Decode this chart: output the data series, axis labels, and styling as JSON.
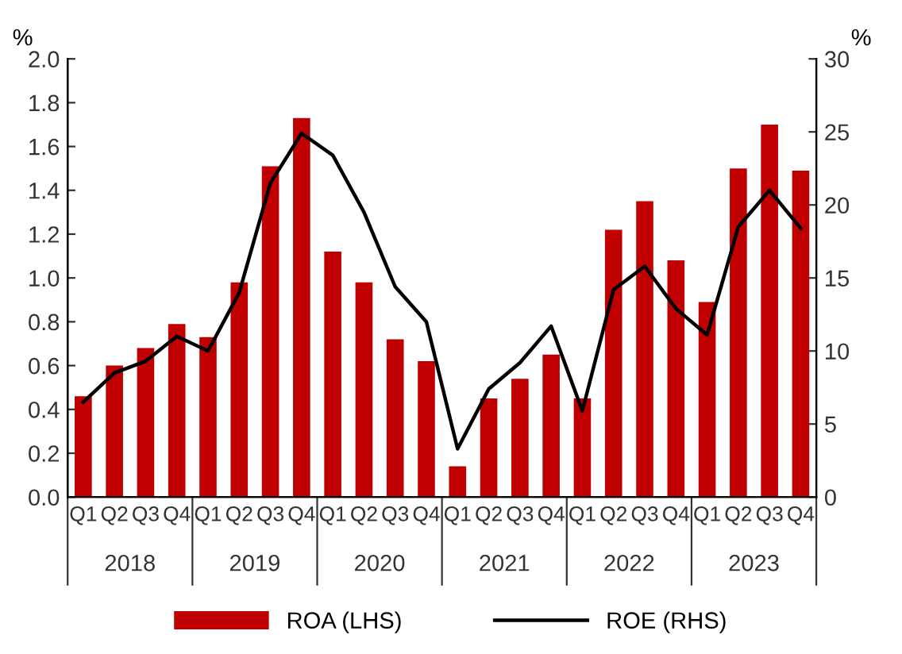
{
  "chart_data": {
    "type": "bar",
    "ylabel": "%",
    "y2label": "%",
    "categories": [
      "Q1",
      "Q2",
      "Q3",
      "Q4",
      "Q1",
      "Q2",
      "Q3",
      "Q4",
      "Q1",
      "Q2",
      "Q3",
      "Q4",
      "Q1",
      "Q2",
      "Q3",
      "Q4",
      "Q1",
      "Q2",
      "Q3",
      "Q4",
      "Q1",
      "Q2",
      "Q3",
      "Q4"
    ],
    "series": [
      {
        "name": "ROA (LHS)",
        "color": "#c00000",
        "values": [
          0.46,
          0.6,
          0.68,
          0.79,
          0.73,
          0.98,
          1.51,
          1.73,
          1.12,
          0.98,
          0.72,
          0.62,
          0.14,
          0.45,
          0.54,
          0.65,
          0.45,
          1.22,
          1.35,
          1.08,
          0.89,
          1.5,
          1.7,
          1.49
        ]
      },
      {
        "name": "ROE (RHS)",
        "type": "line",
        "axis": "y2",
        "color": "#000000",
        "values": [
          6.5,
          8.5,
          9.3,
          11.0,
          10.0,
          14.0,
          21.5,
          24.9,
          23.4,
          19.5,
          14.4,
          12.0,
          3.3,
          7.4,
          9.2,
          11.7,
          5.9,
          14.2,
          15.8,
          12.9,
          11.1,
          18.5,
          21.0,
          18.4
        ]
      }
    ],
    "ylim": [
      0,
      2.0
    ],
    "yticks": [
      {
        "value": 0,
        "label": "0.0"
      },
      {
        "value": 0.2,
        "label": "0.2"
      },
      {
        "value": 0.4,
        "label": "0.4"
      },
      {
        "value": 0.6,
        "label": "0.6"
      },
      {
        "value": 0.8,
        "label": "0.8"
      },
      {
        "value": 1.0,
        "label": "1.0"
      },
      {
        "value": 1.2,
        "label": "1.2"
      },
      {
        "value": 1.4,
        "label": "1.4"
      },
      {
        "value": 1.6,
        "label": "1.6"
      },
      {
        "value": 1.8,
        "label": "1.8"
      },
      {
        "value": 2.0,
        "label": "2.0"
      }
    ],
    "y2lim": [
      0,
      30
    ],
    "y2ticks": [
      0,
      5,
      10,
      15,
      20,
      25,
      30
    ],
    "annotations": [
      "2018",
      "2019",
      "2020",
      "2021",
      "2022",
      "2023"
    ],
    "grid": false,
    "legend": "bottom",
    "marker": "none",
    "line_style": "solid"
  }
}
